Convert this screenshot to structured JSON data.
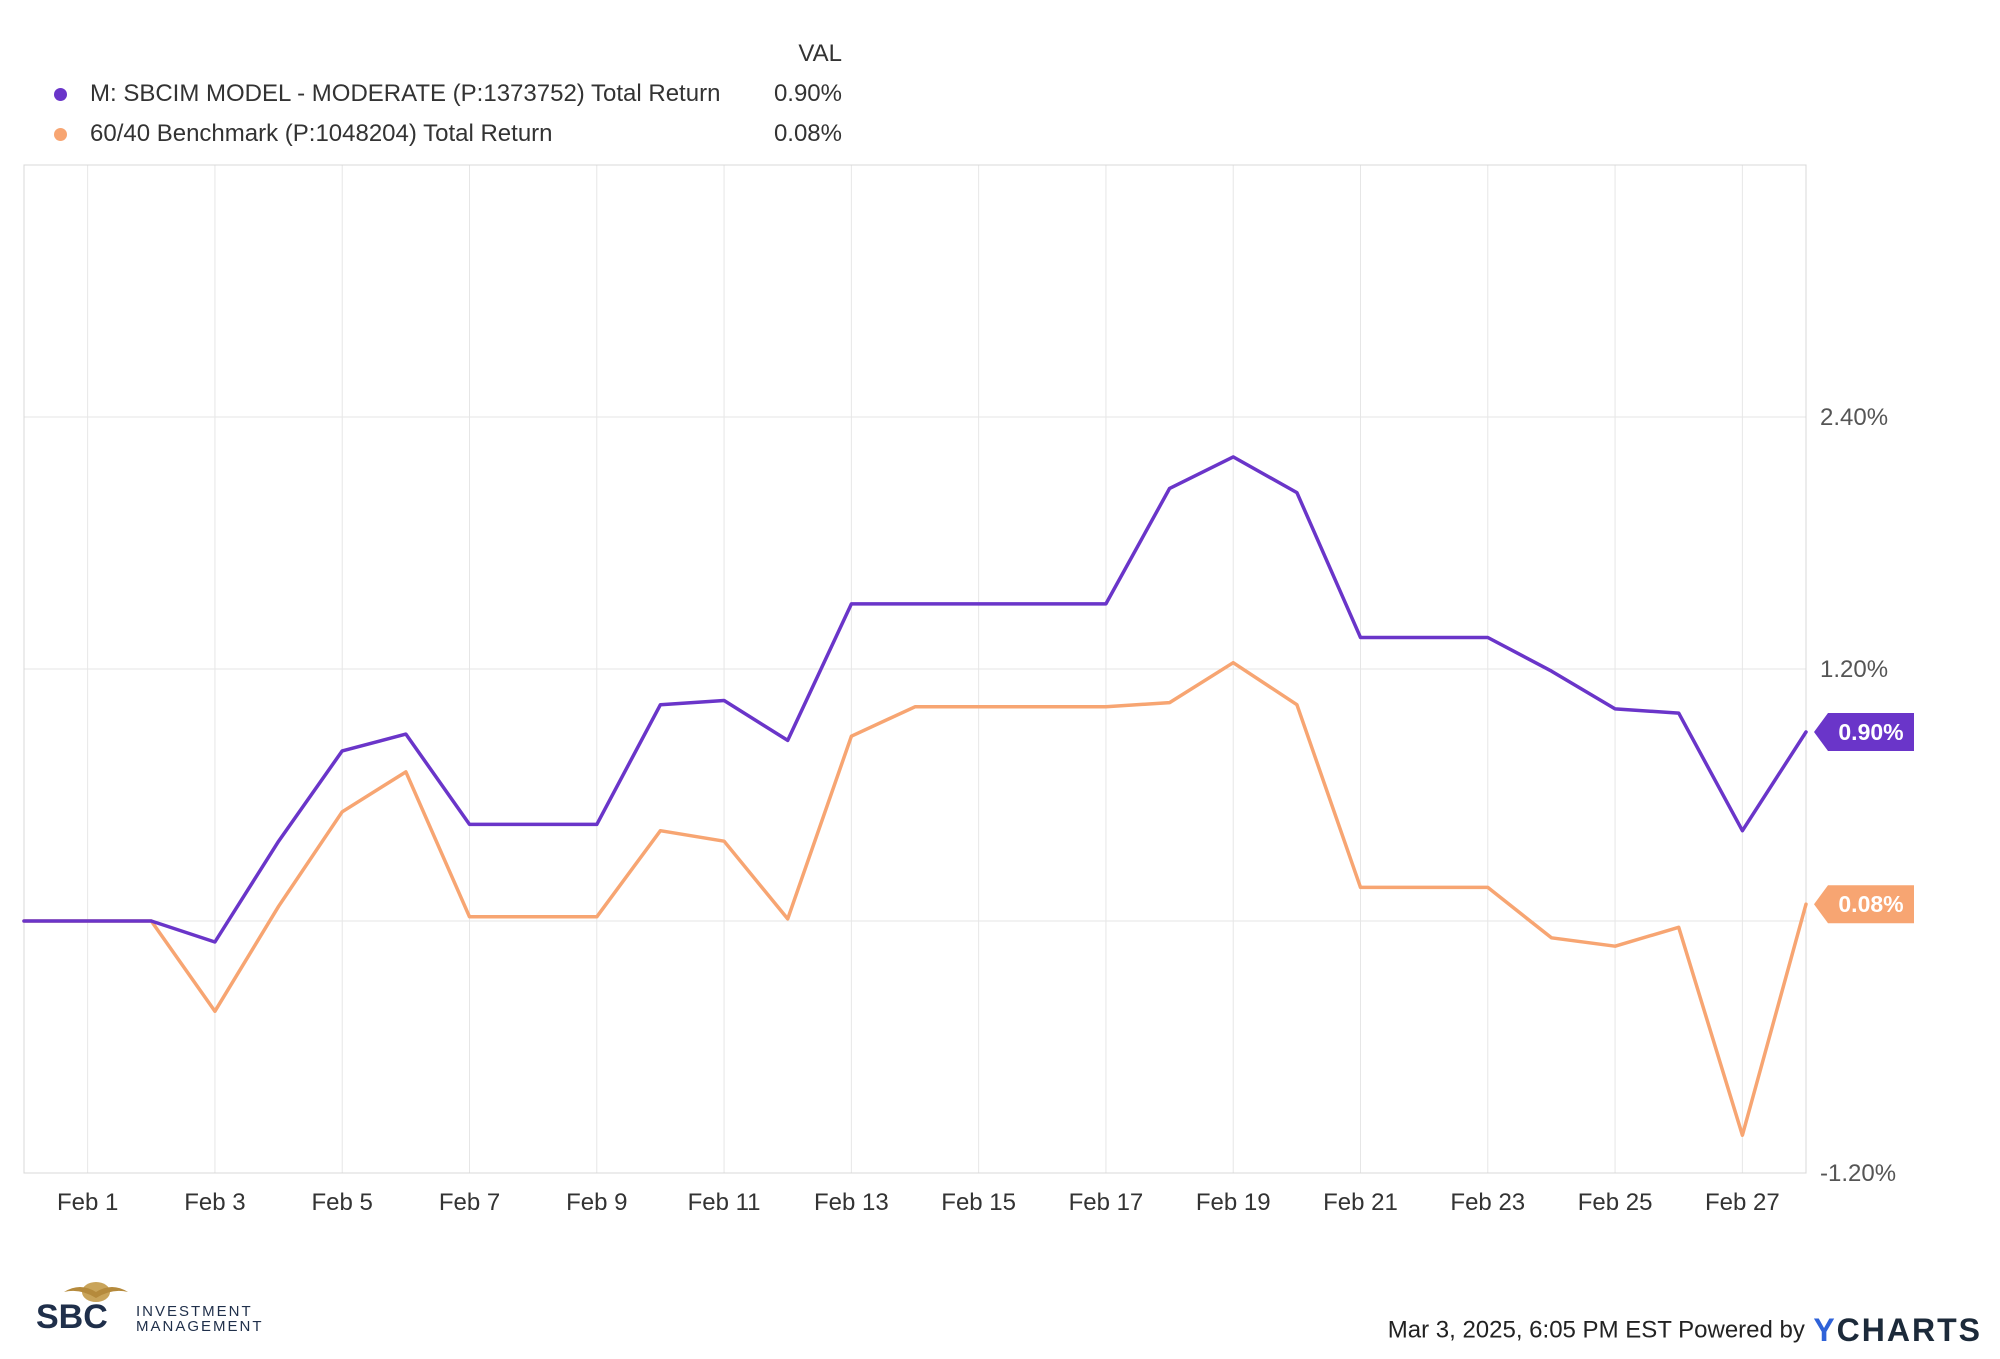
{
  "legend": {
    "value_header": "VAL",
    "items": [
      {
        "name": "M: SBCIM MODEL - MODERATE (P:1373752) Total Return",
        "value": "0.90%",
        "color": "#6a35c9"
      },
      {
        "name": "60/40 Benchmark (P:1048204) Total Return",
        "value": "0.08%",
        "color": "#f7a572"
      }
    ]
  },
  "chart_data": {
    "type": "line",
    "x": [
      "Jan 31",
      "Feb 1",
      "Feb 2",
      "Feb 3",
      "Feb 4",
      "Feb 5",
      "Feb 6",
      "Feb 7",
      "Feb 8",
      "Feb 9",
      "Feb 10",
      "Feb 11",
      "Feb 12",
      "Feb 13",
      "Feb 14",
      "Feb 15",
      "Feb 16",
      "Feb 17",
      "Feb 18",
      "Feb 19",
      "Feb 20",
      "Feb 21",
      "Feb 22",
      "Feb 23",
      "Feb 24",
      "Feb 25",
      "Feb 26",
      "Feb 27",
      "Feb 28"
    ],
    "series": [
      {
        "name": "M: SBCIM MODEL - MODERATE (P:1373752) Total Return",
        "color": "#6a35c9",
        "values": [
          0,
          0,
          0,
          -0.1,
          0.38,
          0.81,
          0.89,
          0.46,
          0.46,
          0.46,
          1.03,
          1.05,
          0.86,
          1.51,
          1.51,
          1.51,
          1.51,
          1.51,
          2.06,
          2.21,
          2.04,
          1.35,
          1.35,
          1.35,
          1.19,
          1.01,
          0.99,
          0.43,
          0.9
        ]
      },
      {
        "name": "60/40 Benchmark (P:1048204) Total Return",
        "color": "#f7a572",
        "values": [
          0,
          0,
          0,
          -0.43,
          0.07,
          0.52,
          0.71,
          0.02,
          0.02,
          0.02,
          0.43,
          0.38,
          0.01,
          0.88,
          1.02,
          1.02,
          1.02,
          1.02,
          1.04,
          1.23,
          1.03,
          0.16,
          0.16,
          0.16,
          -0.08,
          -0.12,
          -0.03,
          -1.02,
          0.08
        ]
      }
    ],
    "x_tick_labels": [
      "Feb 1",
      "Feb 3",
      "Feb 5",
      "Feb 7",
      "Feb 9",
      "Feb 11",
      "Feb 13",
      "Feb 15",
      "Feb 17",
      "Feb 19",
      "Feb 21",
      "Feb 23",
      "Feb 25",
      "Feb 27"
    ],
    "y_ticks": [
      -1.2,
      1.2,
      2.4
    ],
    "y_tick_labels": [
      "-1.20%",
      "1.20%",
      "2.40%"
    ],
    "ylim": [
      -1.2,
      3.6
    ],
    "end_labels": [
      "0.90%",
      "0.08%"
    ],
    "grid": true
  },
  "footer": {
    "logo_text": "SBC",
    "logo_line1": "INVESTMENT",
    "logo_line2": "MANAGEMENT",
    "timestamp": "Mar 3, 2025, 6:05 PM EST Powered by",
    "brand_y": "Y",
    "brand_rest": "CHARTS"
  }
}
